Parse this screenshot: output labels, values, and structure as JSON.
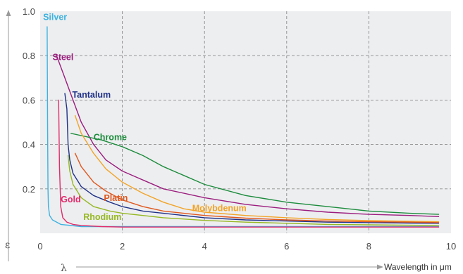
{
  "chart_data": {
    "type": "line",
    "title": "",
    "ylabel": "ε",
    "xlabel_symbol": "λ",
    "xlabel": "Wavelength in μm",
    "xlim": [
      0,
      10
    ],
    "ylim": [
      0,
      1.0
    ],
    "x_ticks": [
      "0",
      "2",
      "4",
      "6",
      "8",
      "10"
    ],
    "y_ticks": [
      "0.2",
      "0.4",
      "0.6",
      "0.8",
      "1.0"
    ],
    "grid": true,
    "background": "#edeef0",
    "series": [
      {
        "name": "Silver",
        "color": "#3db2e0",
        "label_at": [
          0.07,
          0.96
        ],
        "points": [
          [
            0.17,
            0.93
          ],
          [
            0.18,
            0.5
          ],
          [
            0.19,
            0.2
          ],
          [
            0.2,
            0.12
          ],
          [
            0.23,
            0.08
          ],
          [
            0.3,
            0.06
          ],
          [
            0.5,
            0.04
          ],
          [
            1,
            0.03
          ],
          [
            2,
            0.03
          ],
          [
            4,
            0.03
          ],
          [
            6,
            0.03
          ],
          [
            8,
            0.03
          ],
          [
            9.7,
            0.03
          ]
        ]
      },
      {
        "name": "Steel",
        "color": "#9b1d7e",
        "label_at": [
          0.3,
          0.78
        ],
        "points": [
          [
            0.4,
            0.8
          ],
          [
            0.6,
            0.7
          ],
          [
            0.8,
            0.6
          ],
          [
            1,
            0.5
          ],
          [
            1.3,
            0.4
          ],
          [
            1.6,
            0.33
          ],
          [
            2,
            0.28
          ],
          [
            2.5,
            0.24
          ],
          [
            3,
            0.2
          ],
          [
            4,
            0.16
          ],
          [
            5,
            0.13
          ],
          [
            6,
            0.11
          ],
          [
            7,
            0.095
          ],
          [
            8,
            0.085
          ],
          [
            9,
            0.08
          ],
          [
            9.7,
            0.075
          ]
        ]
      },
      {
        "name": "Tantalum",
        "color": "#1f3187",
        "label_at": [
          0.78,
          0.61
        ],
        "points": [
          [
            0.6,
            0.63
          ],
          [
            0.65,
            0.56
          ],
          [
            0.68,
            0.4
          ],
          [
            0.72,
            0.33
          ],
          [
            0.8,
            0.27
          ],
          [
            1,
            0.21
          ],
          [
            1.3,
            0.17
          ],
          [
            1.7,
            0.14
          ],
          [
            2,
            0.12
          ],
          [
            2.5,
            0.1
          ],
          [
            3,
            0.09
          ],
          [
            4,
            0.07
          ],
          [
            5,
            0.06
          ],
          [
            6,
            0.055
          ],
          [
            7,
            0.05
          ],
          [
            8,
            0.048
          ],
          [
            9,
            0.046
          ],
          [
            9.7,
            0.045
          ]
        ]
      },
      {
        "name": "Chrome",
        "color": "#1c8c3c",
        "label_at": [
          1.3,
          0.42
        ],
        "points": [
          [
            0.75,
            0.45
          ],
          [
            1,
            0.44
          ],
          [
            1.5,
            0.42
          ],
          [
            2,
            0.39
          ],
          [
            2.5,
            0.35
          ],
          [
            3,
            0.3
          ],
          [
            3.5,
            0.26
          ],
          [
            4,
            0.22
          ],
          [
            5,
            0.17
          ],
          [
            6,
            0.14
          ],
          [
            7,
            0.12
          ],
          [
            8,
            0.1
          ],
          [
            9,
            0.09
          ],
          [
            9.7,
            0.085
          ]
        ]
      },
      {
        "name": "Molybdenum",
        "color": "#f2a427",
        "label_at": [
          3.7,
          0.1
        ],
        "points": [
          [
            0.85,
            0.53
          ],
          [
            1,
            0.45
          ],
          [
            1.3,
            0.36
          ],
          [
            1.6,
            0.29
          ],
          [
            2,
            0.23
          ],
          [
            2.5,
            0.18
          ],
          [
            3,
            0.14
          ],
          [
            3.5,
            0.11
          ],
          [
            4,
            0.095
          ],
          [
            5,
            0.08
          ],
          [
            6,
            0.07
          ],
          [
            7,
            0.062
          ],
          [
            8,
            0.057
          ],
          [
            9,
            0.054
          ],
          [
            9.7,
            0.052
          ]
        ]
      },
      {
        "name": "Platin",
        "color": "#e0581e",
        "label_at": [
          1.55,
          0.145
        ],
        "points": [
          [
            0.85,
            0.36
          ],
          [
            1,
            0.3
          ],
          [
            1.3,
            0.23
          ],
          [
            1.6,
            0.19
          ],
          [
            2,
            0.15
          ],
          [
            2.5,
            0.12
          ],
          [
            3,
            0.1
          ],
          [
            4,
            0.08
          ],
          [
            5,
            0.068
          ],
          [
            6,
            0.06
          ],
          [
            7,
            0.055
          ],
          [
            8,
            0.052
          ],
          [
            9,
            0.05
          ],
          [
            9.7,
            0.048
          ]
        ]
      },
      {
        "name": "Rhodium",
        "color": "#96b823",
        "label_at": [
          1.05,
          0.06
        ],
        "points": [
          [
            0.68,
            0.35
          ],
          [
            0.72,
            0.28
          ],
          [
            0.8,
            0.22
          ],
          [
            1,
            0.16
          ],
          [
            1.3,
            0.12
          ],
          [
            1.7,
            0.1
          ],
          [
            2,
            0.09
          ],
          [
            2.5,
            0.08
          ],
          [
            3,
            0.07
          ],
          [
            4,
            0.058
          ],
          [
            5,
            0.05
          ],
          [
            6,
            0.045
          ],
          [
            7,
            0.04
          ],
          [
            8,
            0.038
          ],
          [
            9,
            0.036
          ],
          [
            9.7,
            0.035
          ]
        ]
      },
      {
        "name": "Gold",
        "color": "#e12c6a",
        "label_at": [
          0.5,
          0.14
        ],
        "points": [
          [
            0.45,
            0.6
          ],
          [
            0.47,
            0.3
          ],
          [
            0.5,
            0.12
          ],
          [
            0.55,
            0.07
          ],
          [
            0.65,
            0.05
          ],
          [
            0.8,
            0.04
          ],
          [
            1,
            0.035
          ],
          [
            1.5,
            0.03
          ],
          [
            2,
            0.028
          ],
          [
            4,
            0.028
          ],
          [
            6,
            0.028
          ],
          [
            8,
            0.028
          ],
          [
            9.7,
            0.028
          ]
        ]
      }
    ]
  }
}
